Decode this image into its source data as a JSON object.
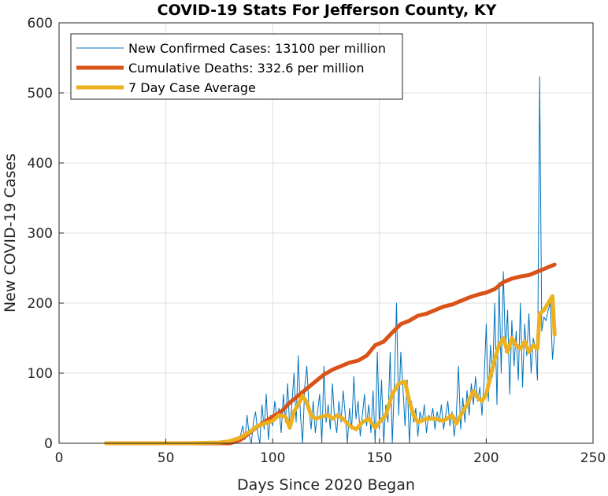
{
  "chart_data": {
    "type": "line",
    "title": "COVID-19 Stats For Jefferson County, KY",
    "xlabel": "Days Since 2020 Began",
    "ylabel": "New COVID-19 Cases",
    "xlim": [
      0,
      250
    ],
    "ylim": [
      0,
      600
    ],
    "xticks": [
      0,
      50,
      100,
      150,
      200,
      250
    ],
    "yticks": [
      0,
      100,
      200,
      300,
      400,
      500,
      600
    ],
    "grid": true,
    "legend_position": "top-left",
    "series": [
      {
        "name": "New Confirmed Cases: 13100 per million",
        "color": "#0072BD",
        "points": [
          [
            22,
            0
          ],
          [
            30,
            0
          ],
          [
            40,
            0
          ],
          [
            50,
            0
          ],
          [
            60,
            0
          ],
          [
            70,
            0
          ],
          [
            75,
            0
          ],
          [
            78,
            3
          ],
          [
            80,
            1
          ],
          [
            82,
            8
          ],
          [
            83,
            0
          ],
          [
            84,
            2
          ],
          [
            85,
            12
          ],
          [
            86,
            25
          ],
          [
            87,
            5
          ],
          [
            88,
            40
          ],
          [
            89,
            10
          ],
          [
            90,
            0
          ],
          [
            91,
            30
          ],
          [
            92,
            45
          ],
          [
            93,
            15
          ],
          [
            94,
            0
          ],
          [
            95,
            55
          ],
          [
            96,
            20
          ],
          [
            97,
            70
          ],
          [
            98,
            5
          ],
          [
            99,
            40
          ],
          [
            100,
            25
          ],
          [
            101,
            60
          ],
          [
            102,
            35
          ],
          [
            103,
            50
          ],
          [
            104,
            15
          ],
          [
            105,
            70
          ],
          [
            106,
            30
          ],
          [
            107,
            85
          ],
          [
            108,
            20
          ],
          [
            109,
            55
          ],
          [
            110,
            100
          ],
          [
            111,
            30
          ],
          [
            112,
            125
          ],
          [
            113,
            40
          ],
          [
            114,
            0
          ],
          [
            115,
            80
          ],
          [
            116,
            110
          ],
          [
            117,
            50
          ],
          [
            118,
            20
          ],
          [
            119,
            60
          ],
          [
            120,
            15
          ],
          [
            121,
            45
          ],
          [
            122,
            70
          ],
          [
            123,
            0
          ],
          [
            124,
            110
          ],
          [
            125,
            30
          ],
          [
            126,
            55
          ],
          [
            127,
            20
          ],
          [
            128,
            85
          ],
          [
            129,
            35
          ],
          [
            130,
            15
          ],
          [
            131,
            60
          ],
          [
            132,
            30
          ],
          [
            133,
            75
          ],
          [
            134,
            40
          ],
          [
            135,
            0
          ],
          [
            136,
            50
          ],
          [
            137,
            20
          ],
          [
            138,
            95
          ],
          [
            139,
            35
          ],
          [
            140,
            60
          ],
          [
            141,
            10
          ],
          [
            142,
            40
          ],
          [
            143,
            70
          ],
          [
            144,
            25
          ],
          [
            145,
            55
          ],
          [
            146,
            15
          ],
          [
            147,
            75
          ],
          [
            148,
            0
          ],
          [
            149,
            130
          ],
          [
            150,
            20
          ],
          [
            151,
            90
          ],
          [
            152,
            0
          ],
          [
            153,
            55
          ],
          [
            154,
            30
          ],
          [
            155,
            130
          ],
          [
            156,
            0
          ],
          [
            157,
            85
          ],
          [
            158,
            200
          ],
          [
            159,
            40
          ],
          [
            160,
            130
          ],
          [
            161,
            80
          ],
          [
            162,
            25
          ],
          [
            163,
            90
          ],
          [
            164,
            0
          ],
          [
            165,
            60
          ],
          [
            166,
            30
          ],
          [
            167,
            50
          ],
          [
            168,
            10
          ],
          [
            169,
            45
          ],
          [
            170,
            30
          ],
          [
            171,
            55
          ],
          [
            172,
            15
          ],
          [
            173,
            40
          ],
          [
            174,
            35
          ],
          [
            175,
            50
          ],
          [
            176,
            20
          ],
          [
            177,
            45
          ],
          [
            178,
            30
          ],
          [
            179,
            55
          ],
          [
            180,
            20
          ],
          [
            181,
            40
          ],
          [
            182,
            60
          ],
          [
            183,
            25
          ],
          [
            184,
            45
          ],
          [
            185,
            10
          ],
          [
            186,
            40
          ],
          [
            187,
            110
          ],
          [
            188,
            20
          ],
          [
            189,
            65
          ],
          [
            190,
            30
          ],
          [
            191,
            75
          ],
          [
            192,
            40
          ],
          [
            193,
            85
          ],
          [
            194,
            55
          ],
          [
            195,
            95
          ],
          [
            196,
            60
          ],
          [
            197,
            80
          ],
          [
            198,
            40
          ],
          [
            199,
            90
          ],
          [
            200,
            170
          ],
          [
            201,
            60
          ],
          [
            202,
            140
          ],
          [
            203,
            95
          ],
          [
            204,
            200
          ],
          [
            205,
            55
          ],
          [
            206,
            230
          ],
          [
            207,
            100
          ],
          [
            208,
            245
          ],
          [
            209,
            130
          ],
          [
            210,
            190
          ],
          [
            211,
            70
          ],
          [
            212,
            175
          ],
          [
            213,
            110
          ],
          [
            214,
            160
          ],
          [
            215,
            90
          ],
          [
            216,
            200
          ],
          [
            217,
            80
          ],
          [
            218,
            170
          ],
          [
            219,
            125
          ],
          [
            220,
            185
          ],
          [
            221,
            100
          ],
          [
            222,
            150
          ],
          [
            223,
            135
          ],
          [
            224,
            90
          ],
          [
            225,
            523
          ],
          [
            226,
            160
          ],
          [
            227,
            180
          ],
          [
            228,
            175
          ],
          [
            229,
            190
          ],
          [
            230,
            200
          ],
          [
            231,
            120
          ],
          [
            232,
            155
          ]
        ]
      },
      {
        "name": "Cumulative Deaths: 332.6 per million",
        "color": "#D95319",
        "points": [
          [
            22,
            0
          ],
          [
            40,
            0
          ],
          [
            60,
            0
          ],
          [
            80,
            0
          ],
          [
            85,
            5
          ],
          [
            88,
            12
          ],
          [
            92,
            22
          ],
          [
            96,
            30
          ],
          [
            100,
            38
          ],
          [
            104,
            45
          ],
          [
            108,
            58
          ],
          [
            112,
            68
          ],
          [
            116,
            78
          ],
          [
            120,
            88
          ],
          [
            124,
            98
          ],
          [
            128,
            105
          ],
          [
            132,
            110
          ],
          [
            136,
            115
          ],
          [
            140,
            118
          ],
          [
            144,
            125
          ],
          [
            148,
            140
          ],
          [
            152,
            145
          ],
          [
            156,
            158
          ],
          [
            160,
            170
          ],
          [
            164,
            175
          ],
          [
            168,
            182
          ],
          [
            172,
            185
          ],
          [
            176,
            190
          ],
          [
            180,
            195
          ],
          [
            184,
            198
          ],
          [
            188,
            203
          ],
          [
            192,
            208
          ],
          [
            196,
            212
          ],
          [
            200,
            215
          ],
          [
            204,
            220
          ],
          [
            208,
            230
          ],
          [
            212,
            235
          ],
          [
            216,
            238
          ],
          [
            220,
            240
          ],
          [
            224,
            245
          ],
          [
            228,
            250
          ],
          [
            232,
            255
          ]
        ]
      },
      {
        "name": "7 Day Case Average",
        "color": "#EDB120",
        "points": [
          [
            22,
            0
          ],
          [
            40,
            0
          ],
          [
            60,
            0
          ],
          [
            75,
            1
          ],
          [
            80,
            3
          ],
          [
            84,
            7
          ],
          [
            87,
            12
          ],
          [
            90,
            18
          ],
          [
            93,
            25
          ],
          [
            96,
            28
          ],
          [
            100,
            32
          ],
          [
            103,
            40
          ],
          [
            106,
            38
          ],
          [
            108,
            22
          ],
          [
            110,
            45
          ],
          [
            112,
            55
          ],
          [
            114,
            68
          ],
          [
            116,
            58
          ],
          [
            118,
            40
          ],
          [
            120,
            35
          ],
          [
            123,
            38
          ],
          [
            126,
            40
          ],
          [
            128,
            35
          ],
          [
            130,
            40
          ],
          [
            133,
            35
          ],
          [
            136,
            25
          ],
          [
            139,
            20
          ],
          [
            142,
            30
          ],
          [
            145,
            35
          ],
          [
            148,
            22
          ],
          [
            150,
            30
          ],
          [
            153,
            40
          ],
          [
            156,
            70
          ],
          [
            159,
            85
          ],
          [
            162,
            88
          ],
          [
            164,
            60
          ],
          [
            166,
            40
          ],
          [
            168,
            30
          ],
          [
            172,
            35
          ],
          [
            176,
            35
          ],
          [
            180,
            32
          ],
          [
            184,
            40
          ],
          [
            186,
            28
          ],
          [
            188,
            40
          ],
          [
            191,
            55
          ],
          [
            194,
            75
          ],
          [
            196,
            65
          ],
          [
            198,
            60
          ],
          [
            200,
            70
          ],
          [
            202,
            95
          ],
          [
            204,
            120
          ],
          [
            206,
            140
          ],
          [
            208,
            150
          ],
          [
            210,
            130
          ],
          [
            212,
            150
          ],
          [
            214,
            140
          ],
          [
            216,
            135
          ],
          [
            218,
            145
          ],
          [
            220,
            130
          ],
          [
            222,
            140
          ],
          [
            224,
            135
          ],
          [
            225,
            185
          ],
          [
            227,
            190
          ],
          [
            229,
            200
          ],
          [
            231,
            210
          ],
          [
            232,
            155
          ]
        ]
      }
    ]
  }
}
